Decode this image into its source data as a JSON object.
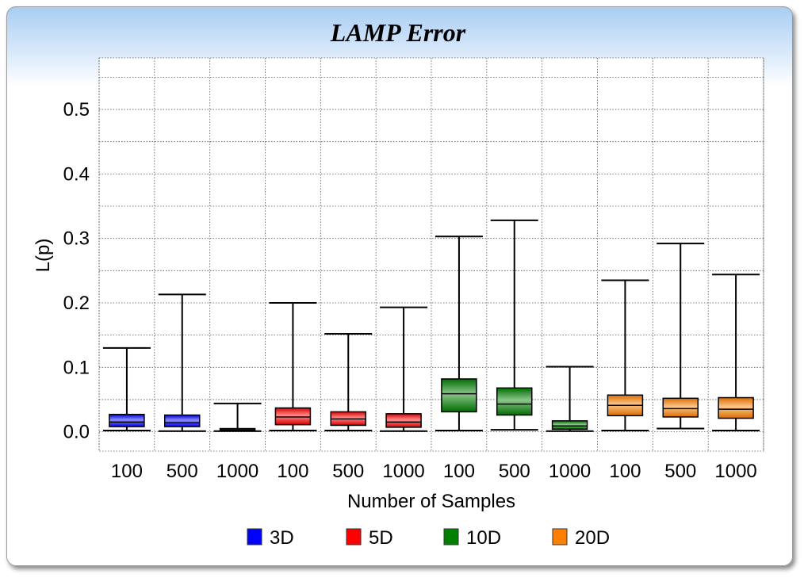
{
  "chart_data": {
    "type": "boxplot",
    "title": "LAMP Error",
    "xlabel": "Number of Samples",
    "ylabel": "L(p)",
    "ylim": [
      -0.03,
      0.58
    ],
    "yticks": [
      "0.0",
      "0.1",
      "0.2",
      "0.3",
      "0.4",
      "0.5"
    ],
    "ytick_values": [
      0,
      0.1,
      0.2,
      0.3,
      0.4,
      0.5
    ],
    "grid": true,
    "legend_position": "bottom",
    "series": [
      {
        "name": "3D",
        "color": "#0000ff",
        "boxes": [
          {
            "label": "100",
            "min": 0.002,
            "q1": 0.008,
            "median": 0.015,
            "q3": 0.027,
            "max": 0.13
          },
          {
            "label": "500",
            "min": 0.001,
            "q1": 0.008,
            "median": 0.014,
            "q3": 0.026,
            "max": 0.213
          },
          {
            "label": "1000",
            "min": 0.001,
            "q1": 0.002,
            "median": 0.003,
            "q3": 0.005,
            "max": 0.044
          }
        ]
      },
      {
        "name": "5D",
        "color": "#ff0000",
        "boxes": [
          {
            "label": "100",
            "min": 0.002,
            "q1": 0.011,
            "median": 0.023,
            "q3": 0.037,
            "max": 0.2
          },
          {
            "label": "500",
            "min": 0.002,
            "q1": 0.01,
            "median": 0.02,
            "q3": 0.031,
            "max": 0.152
          },
          {
            "label": "1000",
            "min": 0.001,
            "q1": 0.007,
            "median": 0.015,
            "q3": 0.028,
            "max": 0.193
          }
        ]
      },
      {
        "name": "10D",
        "color": "#008000",
        "boxes": [
          {
            "label": "100",
            "min": 0.002,
            "q1": 0.031,
            "median": 0.059,
            "q3": 0.082,
            "max": 0.303
          },
          {
            "label": "500",
            "min": 0.003,
            "q1": 0.026,
            "median": 0.043,
            "q3": 0.068,
            "max": 0.328
          },
          {
            "label": "1000",
            "min": 0.001,
            "q1": 0.004,
            "median": 0.009,
            "q3": 0.017,
            "max": 0.101
          }
        ]
      },
      {
        "name": "20D",
        "color": "#ff8000",
        "boxes": [
          {
            "label": "100",
            "min": 0.002,
            "q1": 0.025,
            "median": 0.041,
            "q3": 0.057,
            "max": 0.235
          },
          {
            "label": "500",
            "min": 0.005,
            "q1": 0.023,
            "median": 0.036,
            "q3": 0.052,
            "max": 0.292
          },
          {
            "label": "1000",
            "min": 0.002,
            "q1": 0.021,
            "median": 0.035,
            "q3": 0.053,
            "max": 0.244
          }
        ]
      }
    ]
  }
}
